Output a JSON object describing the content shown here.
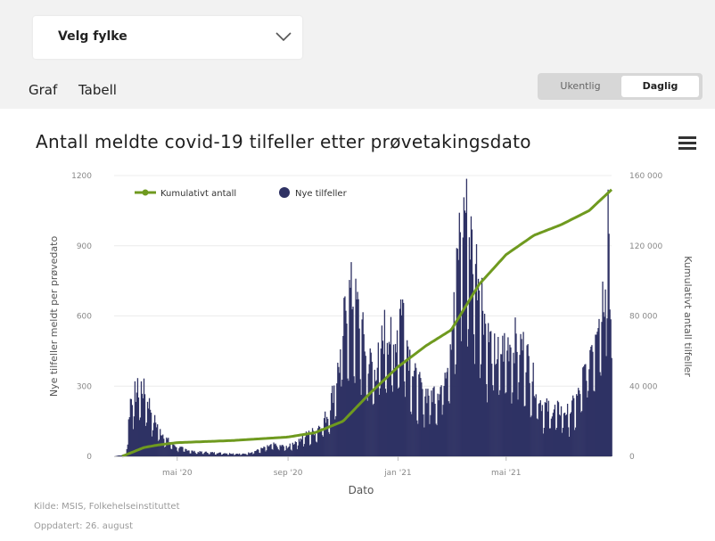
{
  "select": {
    "label": "Velg fylke",
    "icon": "chevron-down-icon"
  },
  "tabs": [
    {
      "label": "Graf",
      "active": true
    },
    {
      "label": "Tabell",
      "active": false
    }
  ],
  "toggle": {
    "weekly": "Ukentlig",
    "daily": "Daglig",
    "selected": "Daglig"
  },
  "menu": {
    "icon": "hamburger-menu-icon"
  },
  "footer": {
    "source": "Kilde: MSIS, Folkehelseinstituttet",
    "updated": "Oppdatert: 26. august"
  },
  "colors": {
    "bars": "#2f3264",
    "line": "#6f9a1f",
    "accent": "#2f3264"
  },
  "chart_data": {
    "type": "bar",
    "title": "Antall meldte covid-19 tilfeller etter prøvetakingsdato",
    "xlabel": "Dato",
    "ylabel_left": "Nye tilfeller meldt per prøvedato",
    "ylabel_right": "Kumulativt antall tilfeller",
    "x_range": [
      "2020-02-21",
      "2021-08-26"
    ],
    "x_ticks": [
      "mai '20",
      "sep '20",
      "jan '21",
      "mai '21"
    ],
    "y_left": {
      "range": [
        0,
        1200
      ],
      "ticks": [
        "0",
        "300",
        "600",
        "900",
        "1200"
      ]
    },
    "y_right": {
      "range": [
        0,
        160000
      ],
      "ticks": [
        "0",
        "40 000",
        "80 000",
        "120 000",
        "160 000"
      ]
    },
    "legend": {
      "position": "top-left",
      "items": [
        "Kumulativt antall",
        "Nye tilfeller"
      ]
    },
    "daily_anchors": [
      [
        "2020-02-21",
        0
      ],
      [
        "2020-03-05",
        10
      ],
      [
        "2020-03-10",
        240
      ],
      [
        "2020-03-15",
        270
      ],
      [
        "2020-03-22",
        300
      ],
      [
        "2020-03-29",
        250
      ],
      [
        "2020-04-05",
        160
      ],
      [
        "2020-04-12",
        110
      ],
      [
        "2020-04-20",
        70
      ],
      [
        "2020-05-01",
        40
      ],
      [
        "2020-05-20",
        20
      ],
      [
        "2020-06-15",
        15
      ],
      [
        "2020-07-15",
        10
      ],
      [
        "2020-08-01",
        30
      ],
      [
        "2020-08-15",
        50
      ],
      [
        "2020-09-01",
        40
      ],
      [
        "2020-09-15",
        80
      ],
      [
        "2020-10-01",
        110
      ],
      [
        "2020-10-15",
        180
      ],
      [
        "2020-10-28",
        400
      ],
      [
        "2020-11-05",
        680
      ],
      [
        "2020-11-10",
        700
      ],
      [
        "2020-11-18",
        620
      ],
      [
        "2020-11-28",
        420
      ],
      [
        "2020-12-08",
        380
      ],
      [
        "2020-12-18",
        560
      ],
      [
        "2020-12-28",
        460
      ],
      [
        "2021-01-05",
        680
      ],
      [
        "2021-01-10",
        520
      ],
      [
        "2021-01-18",
        350
      ],
      [
        "2021-01-28",
        280
      ],
      [
        "2021-02-08",
        270
      ],
      [
        "2021-02-18",
        300
      ],
      [
        "2021-02-26",
        460
      ],
      [
        "2021-03-05",
        650
      ],
      [
        "2021-03-10",
        950
      ],
      [
        "2021-03-16",
        1080
      ],
      [
        "2021-03-24",
        900
      ],
      [
        "2021-04-02",
        760
      ],
      [
        "2021-04-10",
        520
      ],
      [
        "2021-04-20",
        430
      ],
      [
        "2021-05-01",
        480
      ],
      [
        "2021-05-12",
        500
      ],
      [
        "2021-05-22",
        460
      ],
      [
        "2021-06-01",
        320
      ],
      [
        "2021-06-10",
        220
      ],
      [
        "2021-06-20",
        200
      ],
      [
        "2021-07-01",
        200
      ],
      [
        "2021-07-10",
        190
      ],
      [
        "2021-07-20",
        260
      ],
      [
        "2021-08-01",
        440
      ],
      [
        "2021-08-10",
        620
      ],
      [
        "2021-08-18",
        720
      ],
      [
        "2021-08-22",
        1140
      ],
      [
        "2021-08-26",
        370
      ]
    ],
    "cumulative_anchors": [
      [
        "2020-03-01",
        0
      ],
      [
        "2020-03-25",
        5000
      ],
      [
        "2020-04-10",
        6500
      ],
      [
        "2020-05-01",
        7800
      ],
      [
        "2020-07-01",
        9000
      ],
      [
        "2020-09-01",
        11000
      ],
      [
        "2020-10-01",
        13500
      ],
      [
        "2020-11-01",
        20000
      ],
      [
        "2020-12-01",
        36000
      ],
      [
        "2021-01-01",
        51000
      ],
      [
        "2021-02-01",
        63000
      ],
      [
        "2021-03-01",
        72000
      ],
      [
        "2021-04-01",
        98000
      ],
      [
        "2021-05-01",
        115000
      ],
      [
        "2021-06-01",
        126000
      ],
      [
        "2021-07-01",
        132000
      ],
      [
        "2021-08-01",
        140000
      ],
      [
        "2021-08-26",
        152000
      ]
    ]
  }
}
